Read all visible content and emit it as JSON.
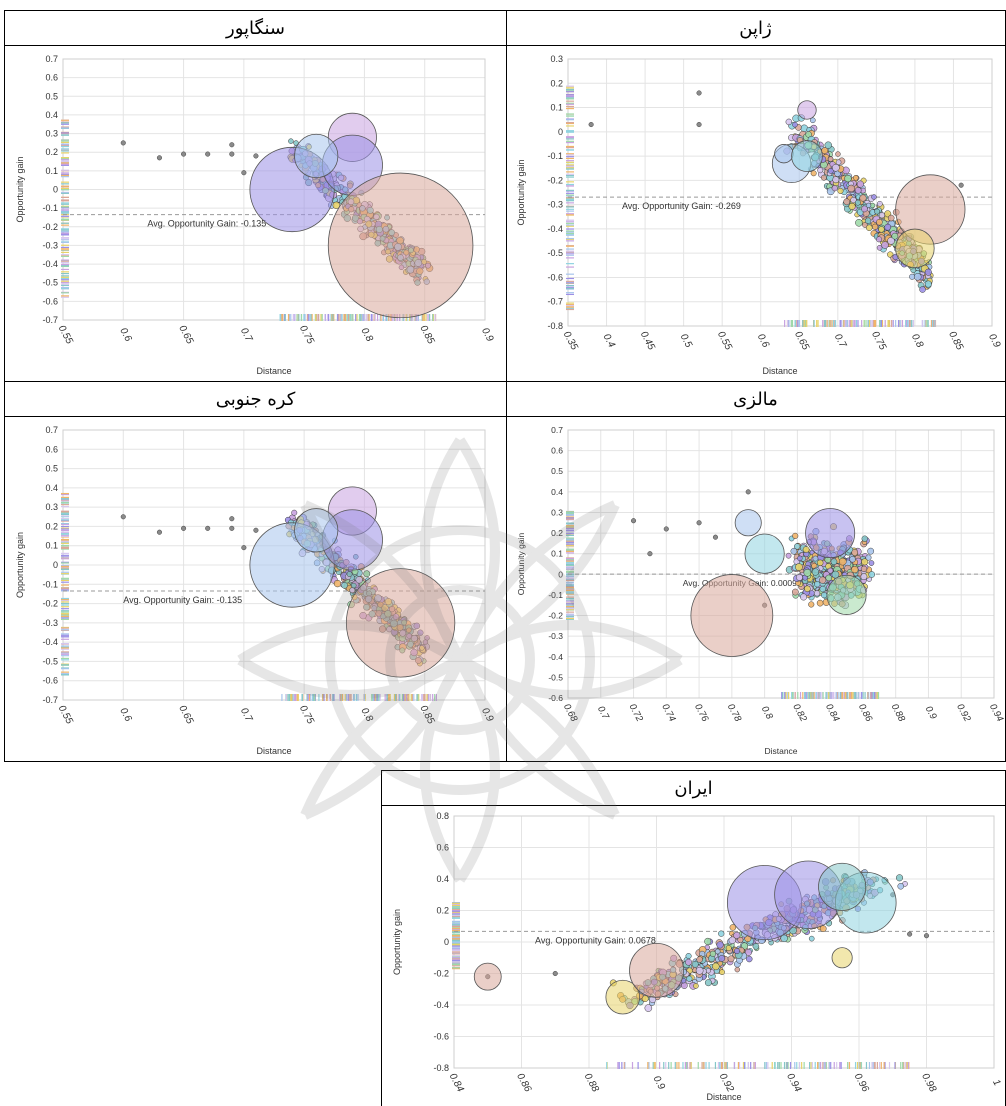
{
  "page": {
    "background": "#ffffff"
  },
  "colors": {
    "palette": [
      "#9b8fe6",
      "#8fd3e0",
      "#e8d36a",
      "#d9a79a",
      "#a7c4ec",
      "#c8a2e0",
      "#9ed9a8",
      "#f0b46a",
      "#86c6c8",
      "#d7c7ef"
    ],
    "avg_line": "#999999",
    "grid": "#e4e4e4"
  },
  "chart_data": [
    {
      "id": "singapore",
      "type": "scatter",
      "title": "سنگاپور",
      "xlabel": "Distance",
      "ylabel": "Opportunity gain",
      "xlim": [
        0.55,
        0.9
      ],
      "ylim": [
        -0.7,
        0.7
      ],
      "x_ticks": [
        "0.55",
        "0.6",
        "0.65",
        "0.7",
        "0.75",
        "0.8",
        "0.85",
        "0.9"
      ],
      "y_ticks": [
        "0.7",
        "0.6",
        "0.5",
        "0.4",
        "0.3",
        "0.2",
        "0.1",
        "0",
        "-0.1",
        "-0.2",
        "-0.3",
        "-0.4",
        "-0.5",
        "-0.6",
        "-0.7"
      ],
      "avg_gain": -0.135,
      "avg_label": "Avg. Opportunity Gain: -0.135",
      "cluster": {
        "x0": 0.74,
        "x1": 0.85,
        "y_at_x0": 0.22,
        "y_at_x1": -0.45,
        "spread": 0.13,
        "count": 420
      },
      "outliers": [
        [
          0.6,
          0.25
        ],
        [
          0.63,
          0.17
        ],
        [
          0.65,
          0.19
        ],
        [
          0.67,
          0.19
        ],
        [
          0.69,
          0.24
        ],
        [
          0.69,
          0.19
        ],
        [
          0.7,
          0.09
        ],
        [
          0.71,
          0.18
        ]
      ],
      "bubbles": [
        [
          0.74,
          0.0,
          0.035,
          0
        ],
        [
          0.79,
          0.28,
          0.02,
          5
        ],
        [
          0.79,
          0.13,
          0.025,
          0
        ],
        [
          0.83,
          -0.3,
          0.06,
          3
        ],
        [
          0.76,
          0.18,
          0.018,
          4
        ]
      ]
    },
    {
      "id": "japan",
      "type": "scatter",
      "title": "ژاپن",
      "xlabel": "Distance",
      "ylabel": "Opportunity gain",
      "xlim": [
        0.35,
        0.9
      ],
      "ylim": [
        -0.8,
        0.3
      ],
      "x_ticks": [
        "0.35",
        "0.4",
        "0.45",
        "0.5",
        "0.55",
        "0.6",
        "0.65",
        "0.7",
        "0.75",
        "0.8",
        "0.85",
        "0.9"
      ],
      "y_ticks": [
        "0.3",
        "0.2",
        "0.1",
        "0",
        "-0.1",
        "-0.2",
        "-0.3",
        "-0.4",
        "-0.5",
        "-0.6",
        "-0.7",
        "-0.8"
      ],
      "avg_gain": -0.269,
      "avg_label": "Avg. Opportunity Gain: -0.269",
      "cluster": {
        "x0": 0.64,
        "x1": 0.82,
        "y_at_x0": 0.02,
        "y_at_x1": -0.6,
        "spread": 0.14,
        "count": 480
      },
      "outliers": [
        [
          0.38,
          0.03
        ],
        [
          0.52,
          0.16
        ],
        [
          0.52,
          0.03
        ],
        [
          0.86,
          -0.22
        ]
      ],
      "bubbles": [
        [
          0.64,
          -0.13,
          0.025,
          4
        ],
        [
          0.63,
          -0.09,
          0.012,
          4
        ],
        [
          0.66,
          0.09,
          0.012,
          5
        ],
        [
          0.66,
          -0.1,
          0.02,
          1
        ],
        [
          0.82,
          -0.32,
          0.045,
          3
        ],
        [
          0.8,
          -0.48,
          0.025,
          2
        ]
      ]
    },
    {
      "id": "south-korea",
      "type": "scatter",
      "title": "کره جنوبی",
      "xlabel": "Distance",
      "ylabel": "Opportunity gain",
      "xlim": [
        0.55,
        0.9
      ],
      "ylim": [
        -0.7,
        0.7
      ],
      "x_ticks": [
        "0.55",
        "0.6",
        "0.65",
        "0.7",
        "0.75",
        "0.8",
        "0.85",
        "0.9"
      ],
      "y_ticks": [
        "0.7",
        "0.6",
        "0.5",
        "0.4",
        "0.3",
        "0.2",
        "0.1",
        "0",
        "-0.1",
        "-0.2",
        "-0.3",
        "-0.4",
        "-0.5",
        "-0.6",
        "-0.7"
      ],
      "avg_gain": -0.135,
      "avg_label": "Avg. Opportunity Gain: -0.135",
      "cluster": {
        "x0": 0.74,
        "x1": 0.85,
        "y_at_x0": 0.22,
        "y_at_x1": -0.45,
        "spread": 0.13,
        "count": 420
      },
      "outliers": [
        [
          0.6,
          0.25
        ],
        [
          0.63,
          0.17
        ],
        [
          0.65,
          0.19
        ],
        [
          0.67,
          0.19
        ],
        [
          0.69,
          0.24
        ],
        [
          0.69,
          0.19
        ],
        [
          0.7,
          0.09
        ],
        [
          0.71,
          0.18
        ]
      ],
      "bubbles": [
        [
          0.74,
          0.0,
          0.035,
          4
        ],
        [
          0.79,
          0.28,
          0.02,
          5
        ],
        [
          0.79,
          0.13,
          0.025,
          0
        ],
        [
          0.83,
          -0.3,
          0.045,
          3
        ],
        [
          0.76,
          0.18,
          0.018,
          4
        ]
      ]
    },
    {
      "id": "malaysia",
      "type": "scatter",
      "title": "مالزی",
      "xlabel": "Distance",
      "ylabel": "Opportunity gain",
      "xlim": [
        0.68,
        0.94
      ],
      "ylim": [
        -0.6,
        0.7
      ],
      "x_ticks": [
        "0.68",
        "0.7",
        "0.72",
        "0.74",
        "0.76",
        "0.78",
        "0.8",
        "0.82",
        "0.84",
        "0.86",
        "0.88",
        "0.9",
        "0.92",
        "0.94"
      ],
      "y_ticks": [
        "0.7",
        "0.6",
        "0.5",
        "0.4",
        "0.3",
        "0.2",
        "0.1",
        "0",
        "-0.1",
        "-0.2",
        "-0.3",
        "-0.4",
        "-0.5",
        "-0.6"
      ],
      "avg_gain": 0.000952,
      "avg_label": "Avg. Opportunity Gain: 0.000952",
      "cluster": {
        "x0": 0.82,
        "x1": 0.86,
        "y_at_x0": 0.02,
        "y_at_x1": 0.02,
        "spread": 0.24,
        "count": 560
      },
      "outliers": [
        [
          0.72,
          0.26
        ],
        [
          0.74,
          0.22
        ],
        [
          0.76,
          0.25
        ],
        [
          0.77,
          0.18
        ],
        [
          0.79,
          0.4
        ],
        [
          0.73,
          0.1
        ],
        [
          0.8,
          -0.15
        ]
      ],
      "bubbles": [
        [
          0.78,
          -0.2,
          0.025,
          3
        ],
        [
          0.8,
          0.1,
          0.012,
          1
        ],
        [
          0.79,
          0.25,
          0.008,
          4
        ],
        [
          0.84,
          0.2,
          0.015,
          0
        ],
        [
          0.85,
          -0.1,
          0.012,
          6
        ]
      ]
    },
    {
      "id": "iran",
      "type": "scatter",
      "title": "ایران",
      "xlabel": "Distance",
      "ylabel": "Opportunity gain",
      "xlim": [
        0.84,
        1.0
      ],
      "ylim": [
        -0.8,
        0.8
      ],
      "x_ticks": [
        "0.84",
        "0.86",
        "0.88",
        "0.9",
        "0.92",
        "0.94",
        "0.96",
        "0.98",
        "1"
      ],
      "y_ticks": [
        "0.8",
        "0.6",
        "0.4",
        "0.2",
        "0",
        "-0.2",
        "-0.4",
        "-0.6",
        "-0.8"
      ],
      "avg_gain": 0.0678,
      "avg_label": "Avg. Opportunity Gain: 0.0678",
      "cluster": {
        "x0": 0.895,
        "x1": 0.965,
        "y_at_x0": -0.35,
        "y_at_x1": 0.4,
        "spread": 0.15,
        "count": 560
      },
      "outliers": [
        [
          0.85,
          -0.22
        ],
        [
          0.87,
          -0.2
        ],
        [
          0.975,
          0.05
        ],
        [
          0.98,
          0.04
        ],
        [
          0.97,
          0.3
        ]
      ],
      "bubbles": [
        [
          0.85,
          -0.22,
          0.004,
          3
        ],
        [
          0.89,
          -0.35,
          0.005,
          2
        ],
        [
          0.9,
          -0.18,
          0.008,
          3
        ],
        [
          0.932,
          0.25,
          0.011,
          0
        ],
        [
          0.945,
          0.3,
          0.01,
          0
        ],
        [
          0.962,
          0.25,
          0.009,
          1
        ],
        [
          0.955,
          0.35,
          0.007,
          8
        ],
        [
          0.955,
          -0.1,
          0.003,
          2
        ]
      ]
    }
  ]
}
